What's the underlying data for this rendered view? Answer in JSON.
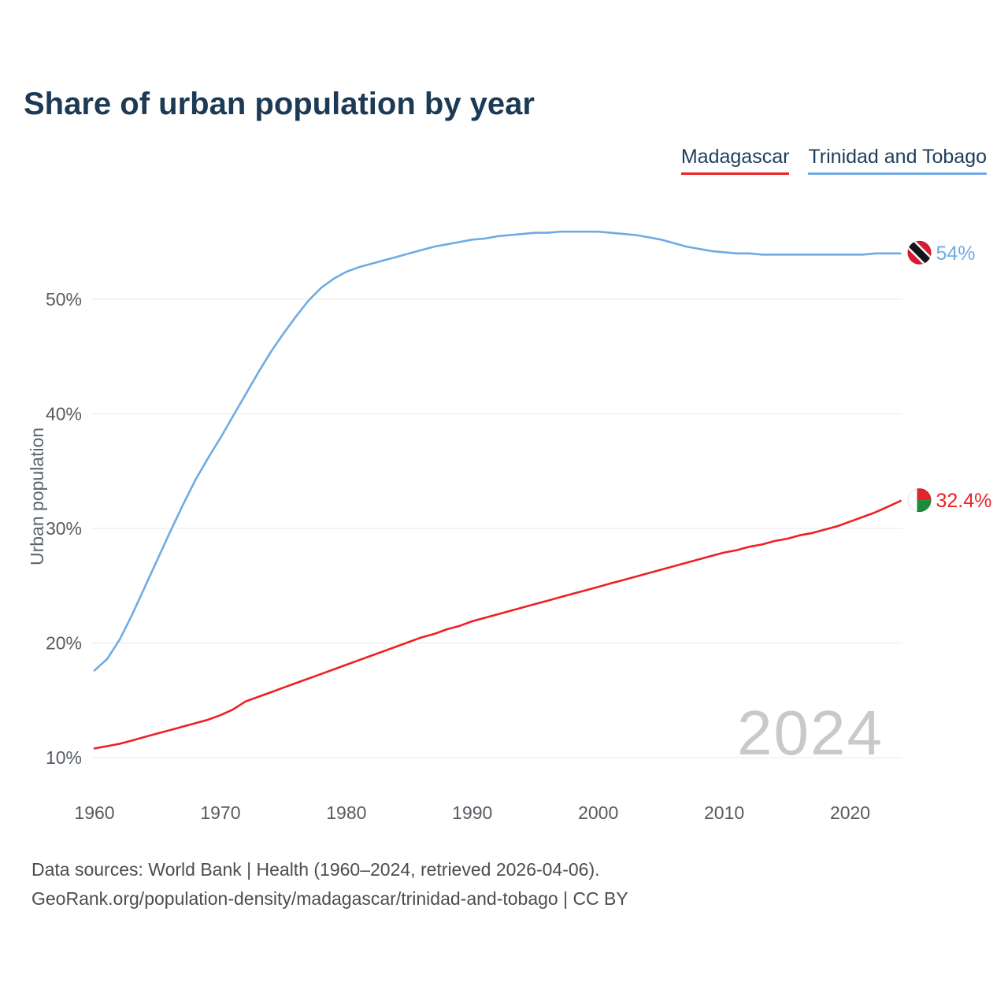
{
  "page": {
    "title": "Share of urban population by year",
    "watermark": "2024",
    "footer_line1": "Data sources: World Bank | Health (1960–2024, retrieved 2026-04-06).",
    "footer_line2": "GeoRank.org/population-density/madagascar/trinidad-and-tobago | CC BY"
  },
  "legend": [
    {
      "label": "Madagascar",
      "color": "#ed2124"
    },
    {
      "label": "Trinidad and Tobago",
      "color": "#6fabe3"
    }
  ],
  "chart_data": {
    "type": "line",
    "title": "Share of urban population by year",
    "xlabel": "",
    "ylabel": "Urban population",
    "x_ticks": [
      1960,
      1970,
      1980,
      1990,
      2000,
      2010,
      2020
    ],
    "y_ticks": [
      {
        "value": 10,
        "label": "10%"
      },
      {
        "value": 20,
        "label": "20%"
      },
      {
        "value": 30,
        "label": "30%"
      },
      {
        "value": 40,
        "label": "40%"
      },
      {
        "value": 50,
        "label": "50%"
      }
    ],
    "xlim": [
      1960,
      2024
    ],
    "ylim": [
      8,
      58
    ],
    "grid": true,
    "legend_position": "top-right",
    "watermark": "2024",
    "x": [
      1960,
      1961,
      1962,
      1963,
      1964,
      1965,
      1966,
      1967,
      1968,
      1969,
      1970,
      1971,
      1972,
      1973,
      1974,
      1975,
      1976,
      1977,
      1978,
      1979,
      1980,
      1981,
      1982,
      1983,
      1984,
      1985,
      1986,
      1987,
      1988,
      1989,
      1990,
      1991,
      1992,
      1993,
      1994,
      1995,
      1996,
      1997,
      1998,
      1999,
      2000,
      2001,
      2002,
      2003,
      2004,
      2005,
      2006,
      2007,
      2008,
      2009,
      2010,
      2011,
      2012,
      2013,
      2014,
      2015,
      2016,
      2017,
      2018,
      2019,
      2020,
      2021,
      2022,
      2023,
      2024
    ],
    "series": [
      {
        "name": "Madagascar",
        "color": "#ed2124",
        "flag_icon": "madagascar-flag-icon",
        "end_label": "32.4%",
        "values": [
          10.8,
          11.0,
          11.2,
          11.5,
          11.8,
          12.1,
          12.4,
          12.7,
          13.0,
          13.3,
          13.7,
          14.2,
          14.9,
          15.3,
          15.7,
          16.1,
          16.5,
          16.9,
          17.3,
          17.7,
          18.1,
          18.5,
          18.9,
          19.3,
          19.7,
          20.1,
          20.5,
          20.8,
          21.2,
          21.5,
          21.9,
          22.2,
          22.5,
          22.8,
          23.1,
          23.4,
          23.7,
          24.0,
          24.3,
          24.6,
          24.9,
          25.2,
          25.5,
          25.8,
          26.1,
          26.4,
          26.7,
          27.0,
          27.3,
          27.6,
          27.9,
          28.1,
          28.4,
          28.6,
          28.9,
          29.1,
          29.4,
          29.6,
          29.9,
          30.2,
          30.6,
          31.0,
          31.4,
          31.9,
          32.4
        ]
      },
      {
        "name": "Trinidad and Tobago",
        "color": "#6fabe3",
        "flag_icon": "trinidad-and-tobago-flag-icon",
        "end_label": "54%",
        "values": [
          17.6,
          18.6,
          20.3,
          22.5,
          24.9,
          27.3,
          29.7,
          32.0,
          34.2,
          36.1,
          37.9,
          39.8,
          41.7,
          43.6,
          45.4,
          47.0,
          48.5,
          49.9,
          51.0,
          51.8,
          52.4,
          52.8,
          53.1,
          53.4,
          53.7,
          54.0,
          54.3,
          54.6,
          54.8,
          55.0,
          55.2,
          55.3,
          55.5,
          55.6,
          55.7,
          55.8,
          55.8,
          55.9,
          55.9,
          55.9,
          55.9,
          55.8,
          55.7,
          55.6,
          55.4,
          55.2,
          54.9,
          54.6,
          54.4,
          54.2,
          54.1,
          54.0,
          54.0,
          53.9,
          53.9,
          53.9,
          53.9,
          53.9,
          53.9,
          53.9,
          53.9,
          53.9,
          54.0,
          54.0,
          54.0
        ]
      }
    ]
  }
}
